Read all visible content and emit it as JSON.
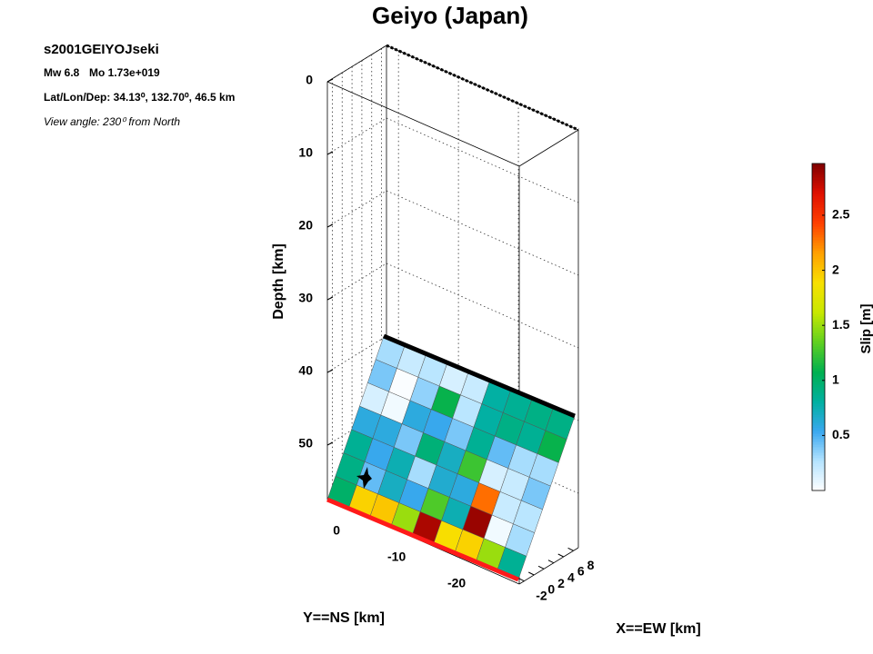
{
  "chart_data": {
    "type": "fault-slip-3d",
    "title": "Geiyo (Japan)",
    "event_id": "s2001GEIYOJseki",
    "magnitude": "Mw 6.8",
    "moment": "Mo 1.73e+019",
    "location": "Lat/Lon/Dep: 34.13⁰, 132.70⁰, 46.5 km",
    "view_angle": "View angle: 230⁰ from North",
    "xlabel": "X==EW [km]",
    "ylabel": "Y==NS [km]",
    "zlabel": "Depth [km]",
    "colorbar_label": "Slip [m]",
    "xlim": [
      -3,
      9
    ],
    "xticks": [
      -2,
      0,
      2,
      4,
      6,
      8
    ],
    "ylim": [
      -30,
      2
    ],
    "yticks": [
      0,
      -10,
      -20
    ],
    "zlim": [
      0,
      57.5
    ],
    "zticks": [
      0,
      10,
      20,
      30,
      40,
      50
    ],
    "clim": [
      0,
      2.97
    ],
    "cticks": [
      0.5,
      1,
      1.5,
      2,
      2.5
    ],
    "colormap": [
      "#ffffff",
      "#b5e4ff",
      "#3aa8f0",
      "#00b0a0",
      "#00b050",
      "#60d020",
      "#c8e800",
      "#f8e000",
      "#ffa000",
      "#ff4000",
      "#e01000",
      "#800000"
    ],
    "grid": true,
    "slip": [
      [
        0.3,
        0.2,
        0.25,
        0.15,
        0.2,
        0.8,
        0.85,
        0.9,
        0.9
      ],
      [
        0.4,
        0.02,
        0.35,
        1.1,
        0.25,
        0.8,
        0.9,
        0.85,
        1.1
      ],
      [
        0.15,
        0.05,
        0.6,
        0.55,
        0.4,
        0.85,
        0.45,
        0.3,
        0.3
      ],
      [
        0.6,
        0.6,
        0.4,
        0.95,
        0.7,
        1.25,
        0.15,
        0.2,
        0.4
      ],
      [
        0.85,
        0.55,
        0.75,
        0.3,
        0.65,
        0.6,
        2.3,
        0.2,
        0.25
      ],
      [
        0.9,
        0.45,
        0.7,
        0.55,
        1.3,
        0.75,
        2.9,
        0.05,
        0.3
      ],
      [
        1.0,
        1.95,
        2.0,
        1.5,
        2.85,
        1.9,
        1.95,
        1.5,
        0.85
      ]
    ]
  }
}
